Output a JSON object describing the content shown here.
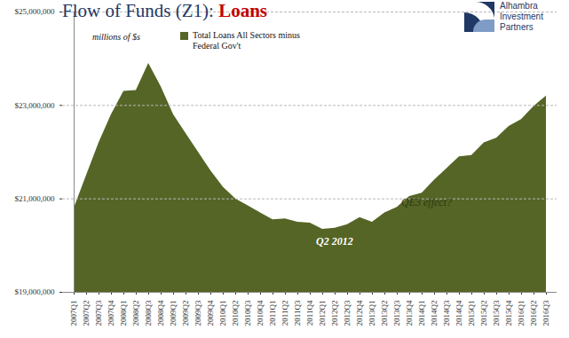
{
  "chart_data": {
    "type": "area",
    "title": "Flow of Funds (Z1): Loans",
    "logo": "Alhambra Investment Partners",
    "annotations": [
      "millions of $s",
      "QE3 effect?",
      "Q2 2012"
    ],
    "categories": [
      "2007Q1",
      "2007Q2",
      "2007Q3",
      "2007Q4",
      "2008Q1",
      "2008Q2",
      "2008Q3",
      "2008Q4",
      "2009Q1",
      "2009Q2",
      "2009Q3",
      "2009Q4",
      "2010Q1",
      "2010Q2",
      "2010Q3",
      "2010Q4",
      "2011Q1",
      "2011Q2",
      "2011Q3",
      "2011Q4",
      "2012Q1",
      "2012Q2",
      "2012Q3",
      "2012Q4",
      "2013Q1",
      "2013Q2",
      "2013Q3",
      "2013Q4",
      "2014Q1",
      "2014Q2",
      "2014Q3",
      "2014Q4",
      "2015Q1",
      "2015Q2",
      "2015Q3",
      "2015Q4",
      "2016Q1",
      "2016Q2",
      "2016Q3"
    ],
    "series": [
      {
        "name": "Total Loans All Sectors minus Federal Gov't",
        "color": "#556526",
        "values": [
          20800000,
          21500000,
          22200000,
          22800000,
          23300000,
          23320000,
          23900000,
          23400000,
          22800000,
          22400000,
          22000000,
          21600000,
          21250000,
          21000000,
          20850000,
          20700000,
          20550000,
          20570000,
          20500000,
          20480000,
          20350000,
          20370000,
          20450000,
          20600000,
          20500000,
          20700000,
          20820000,
          21050000,
          21120000,
          21400000,
          21650000,
          21900000,
          21930000,
          22200000,
          22300000,
          22550000,
          22700000,
          22980000,
          23200000
        ]
      }
    ],
    "ylim": [
      19000000,
      25000000
    ],
    "yticks": [
      {
        "value": 19000000,
        "label": "$19,000,000"
      },
      {
        "value": 21000000,
        "label": "$21,000,000"
      },
      {
        "value": 23000000,
        "label": "$23,000,000"
      },
      {
        "value": 25000000,
        "label": "$25,000,000"
      }
    ],
    "grid": true,
    "legend": "top-left"
  }
}
